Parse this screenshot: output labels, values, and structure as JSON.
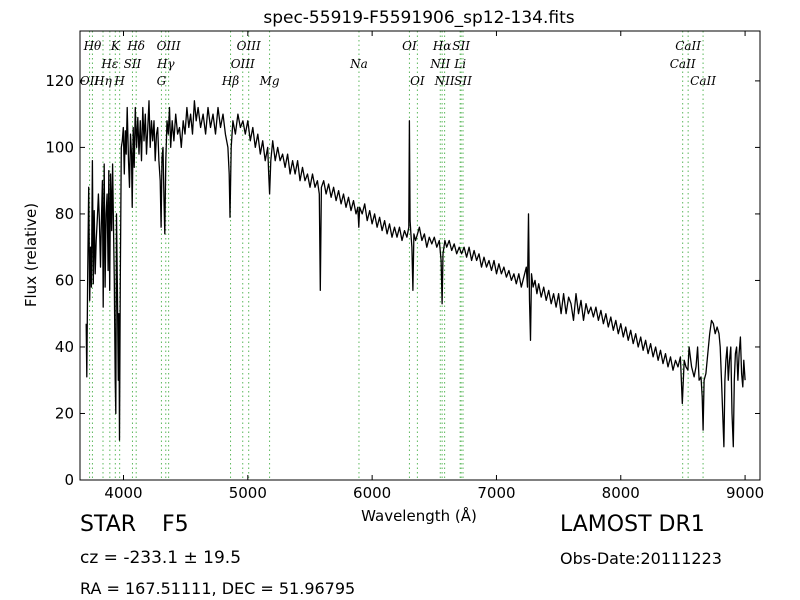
{
  "chart_data": {
    "type": "line",
    "title": "spec-55919-F5591906_sp12-134.fits",
    "xlabel": "Wavelength (Å)",
    "ylabel": "Flux (relative)",
    "xlim": [
      3650,
      9120
    ],
    "ylim": [
      0,
      135
    ],
    "xticks": [
      4000,
      5000,
      6000,
      7000,
      8000,
      9000
    ],
    "yticks": [
      0,
      20,
      40,
      60,
      80,
      100,
      120
    ],
    "grid": false,
    "line_color": "#000000",
    "marker_line_color": "#5cb85c",
    "spectrum": [
      [
        3700,
        47
      ],
      [
        3705,
        31
      ],
      [
        3712,
        62
      ],
      [
        3720,
        88
      ],
      [
        3728,
        54
      ],
      [
        3735,
        70
      ],
      [
        3742,
        58
      ],
      [
        3750,
        96
      ],
      [
        3757,
        59
      ],
      [
        3764,
        81
      ],
      [
        3772,
        62
      ],
      [
        3780,
        72
      ],
      [
        3790,
        79
      ],
      [
        3798,
        86
      ],
      [
        3806,
        78
      ],
      [
        3815,
        64
      ],
      [
        3822,
        78
      ],
      [
        3830,
        90
      ],
      [
        3837,
        52
      ],
      [
        3845,
        95
      ],
      [
        3852,
        58
      ],
      [
        3860,
        80
      ],
      [
        3868,
        86
      ],
      [
        3876,
        63
      ],
      [
        3882,
        93
      ],
      [
        3889,
        57
      ],
      [
        3896,
        92
      ],
      [
        3905,
        75
      ],
      [
        3912,
        95
      ],
      [
        3920,
        74
      ],
      [
        3926,
        60
      ],
      [
        3933,
        30
      ],
      [
        3938,
        20
      ],
      [
        3944,
        80
      ],
      [
        3950,
        60
      ],
      [
        3958,
        30
      ],
      [
        3963,
        50
      ],
      [
        3968,
        12
      ],
      [
        3974,
        60
      ],
      [
        3982,
        100
      ],
      [
        3990,
        102
      ],
      [
        3998,
        106
      ],
      [
        4006,
        92
      ],
      [
        4014,
        105
      ],
      [
        4022,
        98
      ],
      [
        4030,
        112
      ],
      [
        4040,
        96
      ],
      [
        4048,
        88
      ],
      [
        4056,
        104
      ],
      [
        4064,
        98
      ],
      [
        4070,
        82
      ],
      [
        4078,
        106
      ],
      [
        4086,
        94
      ],
      [
        4095,
        112
      ],
      [
        4105,
        100
      ],
      [
        4115,
        109
      ],
      [
        4125,
        98
      ],
      [
        4135,
        108
      ],
      [
        4145,
        96
      ],
      [
        4155,
        112
      ],
      [
        4165,
        102
      ],
      [
        4175,
        110
      ],
      [
        4185,
        98
      ],
      [
        4195,
        106
      ],
      [
        4205,
        114
      ],
      [
        4215,
        100
      ],
      [
        4225,
        108
      ],
      [
        4235,
        102
      ],
      [
        4245,
        108
      ],
      [
        4255,
        96
      ],
      [
        4265,
        104
      ],
      [
        4275,
        106
      ],
      [
        4285,
        96
      ],
      [
        4295,
        90
      ],
      [
        4302,
        76
      ],
      [
        4310,
        97
      ],
      [
        4318,
        100
      ],
      [
        4326,
        84
      ],
      [
        4332,
        74
      ],
      [
        4340,
        96
      ],
      [
        4350,
        108
      ],
      [
        4360,
        104
      ],
      [
        4370,
        112
      ],
      [
        4380,
        100
      ],
      [
        4392,
        108
      ],
      [
        4405,
        102
      ],
      [
        4420,
        110
      ],
      [
        4435,
        104
      ],
      [
        4450,
        106
      ],
      [
        4465,
        100
      ],
      [
        4480,
        108
      ],
      [
        4495,
        104
      ],
      [
        4510,
        112
      ],
      [
        4525,
        106
      ],
      [
        4540,
        110
      ],
      [
        4555,
        104
      ],
      [
        4570,
        114
      ],
      [
        4585,
        108
      ],
      [
        4600,
        112
      ],
      [
        4620,
        106
      ],
      [
        4640,
        110
      ],
      [
        4660,
        104
      ],
      [
        4680,
        112
      ],
      [
        4700,
        106
      ],
      [
        4720,
        110
      ],
      [
        4740,
        104
      ],
      [
        4760,
        112
      ],
      [
        4780,
        106
      ],
      [
        4800,
        110
      ],
      [
        4820,
        104
      ],
      [
        4840,
        100
      ],
      [
        4850,
        92
      ],
      [
        4857,
        79
      ],
      [
        4866,
        100
      ],
      [
        4880,
        108
      ],
      [
        4900,
        104
      ],
      [
        4920,
        110
      ],
      [
        4940,
        106
      ],
      [
        4960,
        108
      ],
      [
        4980,
        104
      ],
      [
        5000,
        108
      ],
      [
        5020,
        102
      ],
      [
        5040,
        106
      ],
      [
        5060,
        100
      ],
      [
        5080,
        104
      ],
      [
        5100,
        98
      ],
      [
        5120,
        102
      ],
      [
        5140,
        96
      ],
      [
        5160,
        100
      ],
      [
        5168,
        92
      ],
      [
        5175,
        86
      ],
      [
        5185,
        96
      ],
      [
        5200,
        102
      ],
      [
        5220,
        96
      ],
      [
        5240,
        100
      ],
      [
        5260,
        96
      ],
      [
        5280,
        98
      ],
      [
        5300,
        94
      ],
      [
        5320,
        98
      ],
      [
        5340,
        92
      ],
      [
        5360,
        96
      ],
      [
        5380,
        92
      ],
      [
        5400,
        96
      ],
      [
        5420,
        90
      ],
      [
        5440,
        94
      ],
      [
        5460,
        90
      ],
      [
        5480,
        92
      ],
      [
        5500,
        88
      ],
      [
        5520,
        92
      ],
      [
        5540,
        88
      ],
      [
        5560,
        90
      ],
      [
        5575,
        86
      ],
      [
        5583,
        57
      ],
      [
        5592,
        88
      ],
      [
        5610,
        90
      ],
      [
        5630,
        86
      ],
      [
        5650,
        89
      ],
      [
        5670,
        85
      ],
      [
        5690,
        88
      ],
      [
        5710,
        84
      ],
      [
        5730,
        87
      ],
      [
        5750,
        83
      ],
      [
        5770,
        86
      ],
      [
        5790,
        82
      ],
      [
        5810,
        85
      ],
      [
        5830,
        81
      ],
      [
        5850,
        84
      ],
      [
        5870,
        80
      ],
      [
        5885,
        82
      ],
      [
        5893,
        76
      ],
      [
        5900,
        82
      ],
      [
        5920,
        80
      ],
      [
        5940,
        83
      ],
      [
        5960,
        78
      ],
      [
        5980,
        81
      ],
      [
        6000,
        77
      ],
      [
        6020,
        80
      ],
      [
        6040,
        76
      ],
      [
        6060,
        79
      ],
      [
        6080,
        75
      ],
      [
        6100,
        78
      ],
      [
        6120,
        74
      ],
      [
        6140,
        77
      ],
      [
        6160,
        73
      ],
      [
        6180,
        76
      ],
      [
        6200,
        73
      ],
      [
        6220,
        76
      ],
      [
        6240,
        72
      ],
      [
        6260,
        75
      ],
      [
        6280,
        73
      ],
      [
        6295,
        76
      ],
      [
        6300,
        108
      ],
      [
        6305,
        78
      ],
      [
        6312,
        74
      ],
      [
        6320,
        70
      ],
      [
        6328,
        57
      ],
      [
        6336,
        74
      ],
      [
        6350,
        72
      ],
      [
        6365,
        74
      ],
      [
        6380,
        76
      ],
      [
        6400,
        72
      ],
      [
        6420,
        74
      ],
      [
        6440,
        70
      ],
      [
        6460,
        73
      ],
      [
        6480,
        71
      ],
      [
        6500,
        73
      ],
      [
        6520,
        70
      ],
      [
        6540,
        72
      ],
      [
        6555,
        66
      ],
      [
        6563,
        53
      ],
      [
        6570,
        68
      ],
      [
        6585,
        72
      ],
      [
        6600,
        70
      ],
      [
        6620,
        72
      ],
      [
        6640,
        69
      ],
      [
        6660,
        71
      ],
      [
        6680,
        68
      ],
      [
        6700,
        70
      ],
      [
        6720,
        68
      ],
      [
        6740,
        70
      ],
      [
        6760,
        67
      ],
      [
        6780,
        70
      ],
      [
        6800,
        66
      ],
      [
        6820,
        69
      ],
      [
        6840,
        66
      ],
      [
        6860,
        68
      ],
      [
        6880,
        64
      ],
      [
        6900,
        67
      ],
      [
        6920,
        64
      ],
      [
        6940,
        66
      ],
      [
        6960,
        63
      ],
      [
        6980,
        66
      ],
      [
        7000,
        62
      ],
      [
        7020,
        65
      ],
      [
        7040,
        62
      ],
      [
        7060,
        64
      ],
      [
        7080,
        61
      ],
      [
        7100,
        63
      ],
      [
        7120,
        60
      ],
      [
        7140,
        62
      ],
      [
        7160,
        59
      ],
      [
        7180,
        62
      ],
      [
        7200,
        58
      ],
      [
        7220,
        61
      ],
      [
        7240,
        64
      ],
      [
        7250,
        58
      ],
      [
        7258,
        80
      ],
      [
        7266,
        54
      ],
      [
        7274,
        42
      ],
      [
        7282,
        62
      ],
      [
        7295,
        58
      ],
      [
        7310,
        60
      ],
      [
        7325,
        56
      ],
      [
        7340,
        59
      ],
      [
        7360,
        55
      ],
      [
        7380,
        58
      ],
      [
        7400,
        54
      ],
      [
        7420,
        57
      ],
      [
        7440,
        53
      ],
      [
        7460,
        56
      ],
      [
        7480,
        52
      ],
      [
        7500,
        56
      ],
      [
        7520,
        50
      ],
      [
        7540,
        56
      ],
      [
        7560,
        50
      ],
      [
        7580,
        55
      ],
      [
        7600,
        53
      ],
      [
        7620,
        48
      ],
      [
        7640,
        56
      ],
      [
        7660,
        50
      ],
      [
        7680,
        54
      ],
      [
        7700,
        48
      ],
      [
        7720,
        53
      ],
      [
        7740,
        50
      ],
      [
        7760,
        52
      ],
      [
        7780,
        49
      ],
      [
        7800,
        52
      ],
      [
        7820,
        48
      ],
      [
        7840,
        51
      ],
      [
        7860,
        47
      ],
      [
        7880,
        50
      ],
      [
        7900,
        46
      ],
      [
        7920,
        49
      ],
      [
        7940,
        45
      ],
      [
        7960,
        48
      ],
      [
        7980,
        44
      ],
      [
        8000,
        47
      ],
      [
        8020,
        43
      ],
      [
        8040,
        46
      ],
      [
        8060,
        42
      ],
      [
        8080,
        45
      ],
      [
        8100,
        41
      ],
      [
        8120,
        44
      ],
      [
        8140,
        40
      ],
      [
        8160,
        43
      ],
      [
        8180,
        39
      ],
      [
        8200,
        42
      ],
      [
        8220,
        38
      ],
      [
        8240,
        41
      ],
      [
        8260,
        37
      ],
      [
        8280,
        40
      ],
      [
        8300,
        36
      ],
      [
        8320,
        39
      ],
      [
        8340,
        35
      ],
      [
        8360,
        38
      ],
      [
        8380,
        34
      ],
      [
        8400,
        37
      ],
      [
        8420,
        33
      ],
      [
        8440,
        36
      ],
      [
        8460,
        34
      ],
      [
        8480,
        37
      ],
      [
        8495,
        23
      ],
      [
        8510,
        36
      ],
      [
        8525,
        34
      ],
      [
        8540,
        33
      ],
      [
        8550,
        40
      ],
      [
        8570,
        34
      ],
      [
        8590,
        31
      ],
      [
        8605,
        34
      ],
      [
        8618,
        40
      ],
      [
        8630,
        30
      ],
      [
        8645,
        31
      ],
      [
        8655,
        25
      ],
      [
        8662,
        15
      ],
      [
        8670,
        30
      ],
      [
        8685,
        32
      ],
      [
        8700,
        38
      ],
      [
        8715,
        44
      ],
      [
        8730,
        48
      ],
      [
        8745,
        47
      ],
      [
        8760,
        44
      ],
      [
        8775,
        46
      ],
      [
        8790,
        44
      ],
      [
        8800,
        40
      ],
      [
        8810,
        30
      ],
      [
        8820,
        20
      ],
      [
        8830,
        10
      ],
      [
        8838,
        30
      ],
      [
        8846,
        36
      ],
      [
        8855,
        40
      ],
      [
        8865,
        30
      ],
      [
        8875,
        36
      ],
      [
        8885,
        40
      ],
      [
        8895,
        20
      ],
      [
        8905,
        10
      ],
      [
        8913,
        30
      ],
      [
        8922,
        38
      ],
      [
        8932,
        40
      ],
      [
        8942,
        30
      ],
      [
        8952,
        38
      ],
      [
        8962,
        43
      ],
      [
        8972,
        32
      ],
      [
        8982,
        28
      ],
      [
        8990,
        36
      ],
      [
        9000,
        30
      ]
    ],
    "lines": [
      {
        "label": "OII",
        "x": 3727,
        "row": 3
      },
      {
        "label": "Hθ",
        "x": 3750,
        "row": 1
      },
      {
        "label": "Hη",
        "x": 3835,
        "row": 3
      },
      {
        "label": "Hε",
        "x": 3890,
        "row": 2
      },
      {
        "label": "K",
        "x": 3934,
        "row": 1
      },
      {
        "label": "H",
        "x": 3969,
        "row": 3
      },
      {
        "label": "SII",
        "x": 4072,
        "row": 2
      },
      {
        "label": "Hδ",
        "x": 4102,
        "row": 1
      },
      {
        "label": "G",
        "x": 4305,
        "row": 3
      },
      {
        "label": "Hγ",
        "x": 4340,
        "row": 2
      },
      {
        "label": "OIII",
        "x": 4363,
        "row": 1
      },
      {
        "label": "Hβ",
        "x": 4861,
        "row": 3
      },
      {
        "label": "OIII",
        "x": 4959,
        "row": 2
      },
      {
        "label": "OIII",
        "x": 5007,
        "row": 1
      },
      {
        "label": "Mg",
        "x": 5175,
        "row": 3
      },
      {
        "label": "Na",
        "x": 5894,
        "row": 2
      },
      {
        "label": "OI",
        "x": 6300,
        "row": 1
      },
      {
        "label": "OI",
        "x": 6364,
        "row": 3
      },
      {
        "label": "NII",
        "x": 6548,
        "row": 2
      },
      {
        "label": "Hα",
        "x": 6563,
        "row": 1
      },
      {
        "label": "NII",
        "x": 6583,
        "row": 3
      },
      {
        "label": "Li",
        "x": 6708,
        "row": 2
      },
      {
        "label": "SII",
        "x": 6716,
        "row": 1
      },
      {
        "label": "SII",
        "x": 6731,
        "row": 3
      },
      {
        "label": "CaII",
        "x": 8498,
        "row": 2
      },
      {
        "label": "CaII",
        "x": 8542,
        "row": 1
      },
      {
        "label": "CaII",
        "x": 8662,
        "row": 3
      }
    ]
  },
  "info": {
    "class": "STAR",
    "subclass": "F5",
    "survey": "LAMOST DR1",
    "cz": "cz = -233.1 ± 19.5",
    "obs_date": "Obs-Date:20111223",
    "radec": "RA = 167.51111, DEC = 51.96795"
  }
}
